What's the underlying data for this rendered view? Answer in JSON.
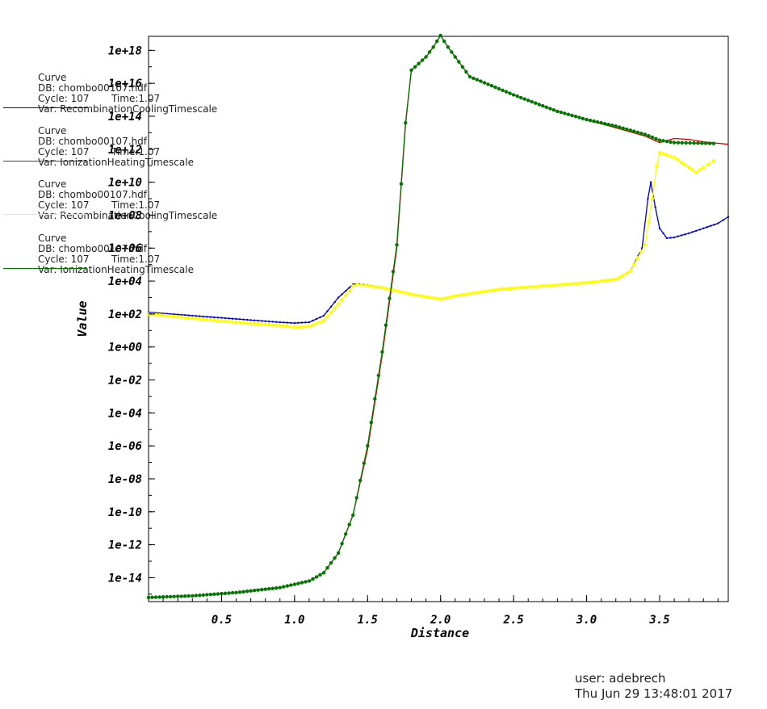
{
  "chart_data": {
    "type": "line",
    "xlabel": "Distance",
    "ylabel": "Value",
    "xlim": [
      0.0,
      3.97
    ],
    "ylim_log10": [
      -15.45,
      18.85
    ],
    "y_scale": "log",
    "grid": false,
    "x_ticks": [
      "0.5",
      "1.0",
      "1.5",
      "2.0",
      "2.5",
      "3.0",
      "3.5"
    ],
    "y_ticks": [
      "1e+18",
      "1e+16",
      "1e+14",
      "1e+12",
      "1e+10",
      "1e+08",
      "1e+06",
      "1e+04",
      "1e+02",
      "1e+00",
      "1e-02",
      "1e-04",
      "1e-06",
      "1e-08",
      "1e-10",
      "1e-12",
      "1e-14"
    ],
    "series": [
      {
        "name": "RecombinationCoolingTimescale",
        "color": "#0000cc",
        "markers": true,
        "x": [
          0.0,
          0.3,
          0.6,
          0.9,
          1.0,
          1.1,
          1.2,
          1.3,
          1.4,
          1.43,
          1.6,
          1.8,
          2.0,
          2.1,
          2.4,
          2.7,
          3.0,
          3.2,
          3.3,
          3.38,
          3.42,
          3.44,
          3.47,
          3.5,
          3.55,
          3.6,
          3.7,
          3.8,
          3.9,
          3.97
        ],
        "y_log10": [
          2.1,
          1.9,
          1.7,
          1.5,
          1.45,
          1.5,
          1.9,
          3.0,
          3.8,
          3.85,
          3.6,
          3.2,
          2.9,
          3.1,
          3.5,
          3.7,
          3.9,
          4.1,
          4.6,
          6.0,
          9.0,
          10.0,
          8.5,
          7.2,
          6.6,
          6.65,
          6.9,
          7.2,
          7.5,
          7.9
        ]
      },
      {
        "name": "IonizationHeatingTimescale",
        "color": "#dd0000",
        "markers": false,
        "x": [
          0.0,
          0.3,
          0.6,
          0.9,
          1.1,
          1.2,
          1.3,
          1.4,
          1.5,
          1.6,
          1.7,
          1.76,
          1.8,
          1.9,
          1.95,
          2.0,
          2.05,
          2.2,
          2.5,
          2.8,
          3.0,
          3.2,
          3.4,
          3.5,
          3.6,
          3.7,
          3.8,
          3.97
        ],
        "y_log10": [
          -15.2,
          -15.1,
          -14.9,
          -14.6,
          -14.2,
          -13.7,
          -12.5,
          -10.2,
          -6.2,
          -0.5,
          6.0,
          13.5,
          16.8,
          17.6,
          18.2,
          18.9,
          18.2,
          16.4,
          15.3,
          14.3,
          13.8,
          13.3,
          12.8,
          12.4,
          12.65,
          12.6,
          12.45,
          12.3
        ]
      },
      {
        "name": "RecombinationCoolingTimescale",
        "color": "#ffff00",
        "markers": true,
        "x": [
          0.0,
          0.3,
          0.6,
          0.9,
          1.0,
          1.1,
          1.2,
          1.3,
          1.4,
          1.43,
          1.6,
          1.8,
          2.0,
          2.1,
          2.4,
          2.7,
          3.0,
          3.2,
          3.3,
          3.4,
          3.45,
          3.48,
          3.5,
          3.6,
          3.7,
          3.75,
          3.8,
          3.87
        ],
        "y_log10": [
          2.0,
          1.75,
          1.5,
          1.3,
          1.2,
          1.25,
          1.6,
          2.6,
          3.7,
          3.8,
          3.6,
          3.2,
          2.9,
          3.1,
          3.5,
          3.7,
          3.9,
          4.1,
          4.6,
          6.2,
          9.0,
          11.0,
          11.8,
          11.5,
          10.9,
          10.6,
          10.9,
          11.3
        ]
      },
      {
        "name": "IonizationHeatingTimescale",
        "color": "#007700",
        "markers": true,
        "x": [
          0.0,
          0.3,
          0.6,
          0.9,
          1.1,
          1.2,
          1.3,
          1.4,
          1.5,
          1.6,
          1.7,
          1.76,
          1.8,
          1.9,
          1.95,
          2.0,
          2.05,
          2.2,
          2.5,
          2.8,
          3.0,
          3.2,
          3.4,
          3.5,
          3.6,
          3.87
        ],
        "y_log10": [
          -15.2,
          -15.1,
          -14.9,
          -14.6,
          -14.2,
          -13.7,
          -12.5,
          -10.2,
          -6.0,
          -0.3,
          6.2,
          13.6,
          16.8,
          17.6,
          18.2,
          18.9,
          18.2,
          16.4,
          15.3,
          14.3,
          13.8,
          13.4,
          12.9,
          12.55,
          12.4,
          12.35
        ]
      }
    ]
  },
  "legend": [
    {
      "l1": "Curve",
      "l2": "DB: chombo00107.hdf",
      "l3": "Cycle:  107",
      "time": "Time:1.07",
      "l4": "Var: RecombinationCoolingTimescale"
    },
    {
      "l1": "Curve",
      "l2": "DB: chombo00107.hdf",
      "l3": "Cycle:  107",
      "time": "Time:1.07",
      "l4": "Var: IonizationHeatingTimescale"
    },
    {
      "l1": "Curve",
      "l2": "DB: chombo00107.hdf",
      "l3": "Cycle:  107",
      "time": "Time:1.07",
      "l4": "Var: RecombinationCoolingTimescale"
    },
    {
      "l1": "Curve",
      "l2": "DB: chombo00107.hdf",
      "l3": "Cycle:  107",
      "time": "Time:1.07",
      "l4": "Var: IonizationHeatingTimescale"
    }
  ],
  "footer": {
    "user": "user: adebrech",
    "date": "Thu Jun 29 13:48:01 2017"
  }
}
